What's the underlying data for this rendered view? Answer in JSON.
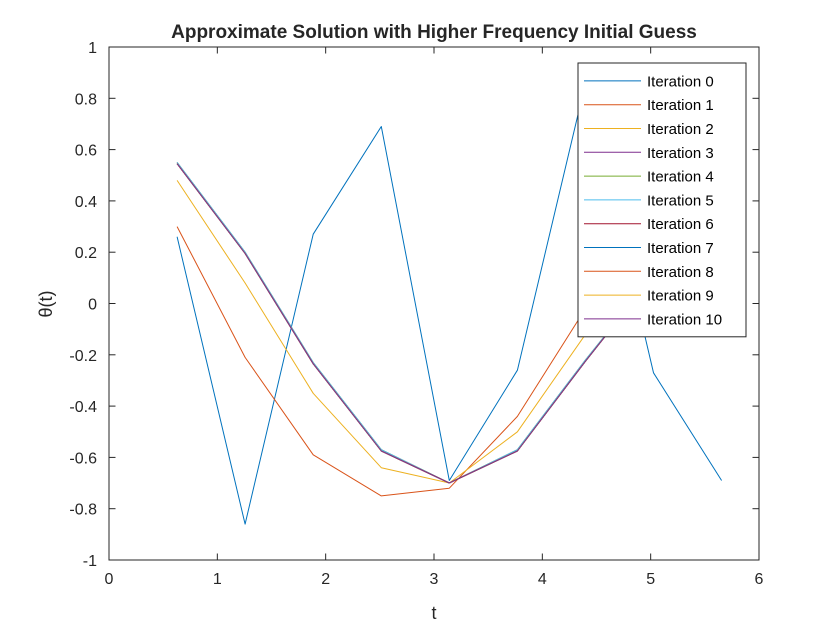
{
  "chart_data": {
    "type": "line",
    "title": "Approximate Solution with Higher Frequency Initial Guess",
    "xlabel": "t",
    "ylabel": "θ(t)",
    "xlim": [
      0,
      6
    ],
    "ylim": [
      -1,
      1
    ],
    "xticks": [
      "0",
      "1",
      "2",
      "3",
      "4",
      "5",
      "6"
    ],
    "yticks": [
      "1",
      "0.8",
      "0.6",
      "0.4",
      "0.2",
      "0",
      "-0.2",
      "-0.4",
      "-0.6",
      "-0.8",
      "-1"
    ],
    "grid": false,
    "legend_position": "top-right",
    "x": [
      0.6283,
      1.2566,
      1.885,
      2.5133,
      3.1416,
      3.7699,
      4.3982,
      5.0265,
      5.6549
    ],
    "series": [
      {
        "name": "Iteration 0",
        "color": "#0072BD",
        "values": [
          0.26,
          -0.86,
          0.27,
          0.69,
          -0.69,
          -0.26,
          0.86,
          -0.27,
          -0.69
        ]
      },
      {
        "name": "Iteration 1",
        "color": "#D95319",
        "values": [
          0.3,
          -0.21,
          -0.59,
          -0.75,
          -0.72,
          -0.44,
          -0.02,
          null,
          null
        ]
      },
      {
        "name": "Iteration 2",
        "color": "#EDB120",
        "values": [
          0.48,
          0.08,
          -0.35,
          -0.64,
          -0.7,
          -0.5,
          -0.12,
          null,
          null
        ]
      },
      {
        "name": "Iteration 3",
        "color": "#7E2F8E",
        "values": [
          0.55,
          0.2,
          -0.23,
          -0.57,
          -0.7,
          -0.57,
          -0.22,
          0.11,
          null
        ]
      },
      {
        "name": "Iteration 4",
        "color": "#77AC30",
        "values": [
          0.55,
          0.2,
          -0.23,
          -0.57,
          -0.7,
          -0.57,
          -0.22,
          0.11,
          null
        ]
      },
      {
        "name": "Iteration 5",
        "color": "#4DBEEE",
        "values": [
          0.55,
          0.2,
          -0.23,
          -0.57,
          -0.7,
          -0.57,
          -0.22,
          0.11,
          null
        ]
      },
      {
        "name": "Iteration 6",
        "color": "#A2142F",
        "values": [
          0.545,
          0.195,
          -0.235,
          -0.575,
          -0.7,
          -0.575,
          -0.225,
          0.11,
          null
        ]
      },
      {
        "name": "Iteration 7",
        "color": "#0072BD",
        "values": [
          0.545,
          0.195,
          -0.235,
          -0.575,
          -0.7,
          -0.575,
          -0.225,
          0.11,
          null
        ]
      },
      {
        "name": "Iteration 8",
        "color": "#D95319",
        "values": [
          0.545,
          0.195,
          -0.235,
          -0.575,
          -0.7,
          -0.575,
          -0.225,
          0.11,
          null
        ]
      },
      {
        "name": "Iteration 9",
        "color": "#EDB120",
        "values": [
          0.545,
          0.195,
          -0.235,
          -0.575,
          -0.7,
          -0.575,
          -0.225,
          0.11,
          null
        ]
      },
      {
        "name": "Iteration 10",
        "color": "#7E2F8E",
        "values": [
          0.545,
          0.195,
          -0.235,
          -0.575,
          -0.7,
          -0.575,
          -0.225,
          0.11,
          null
        ]
      }
    ]
  }
}
